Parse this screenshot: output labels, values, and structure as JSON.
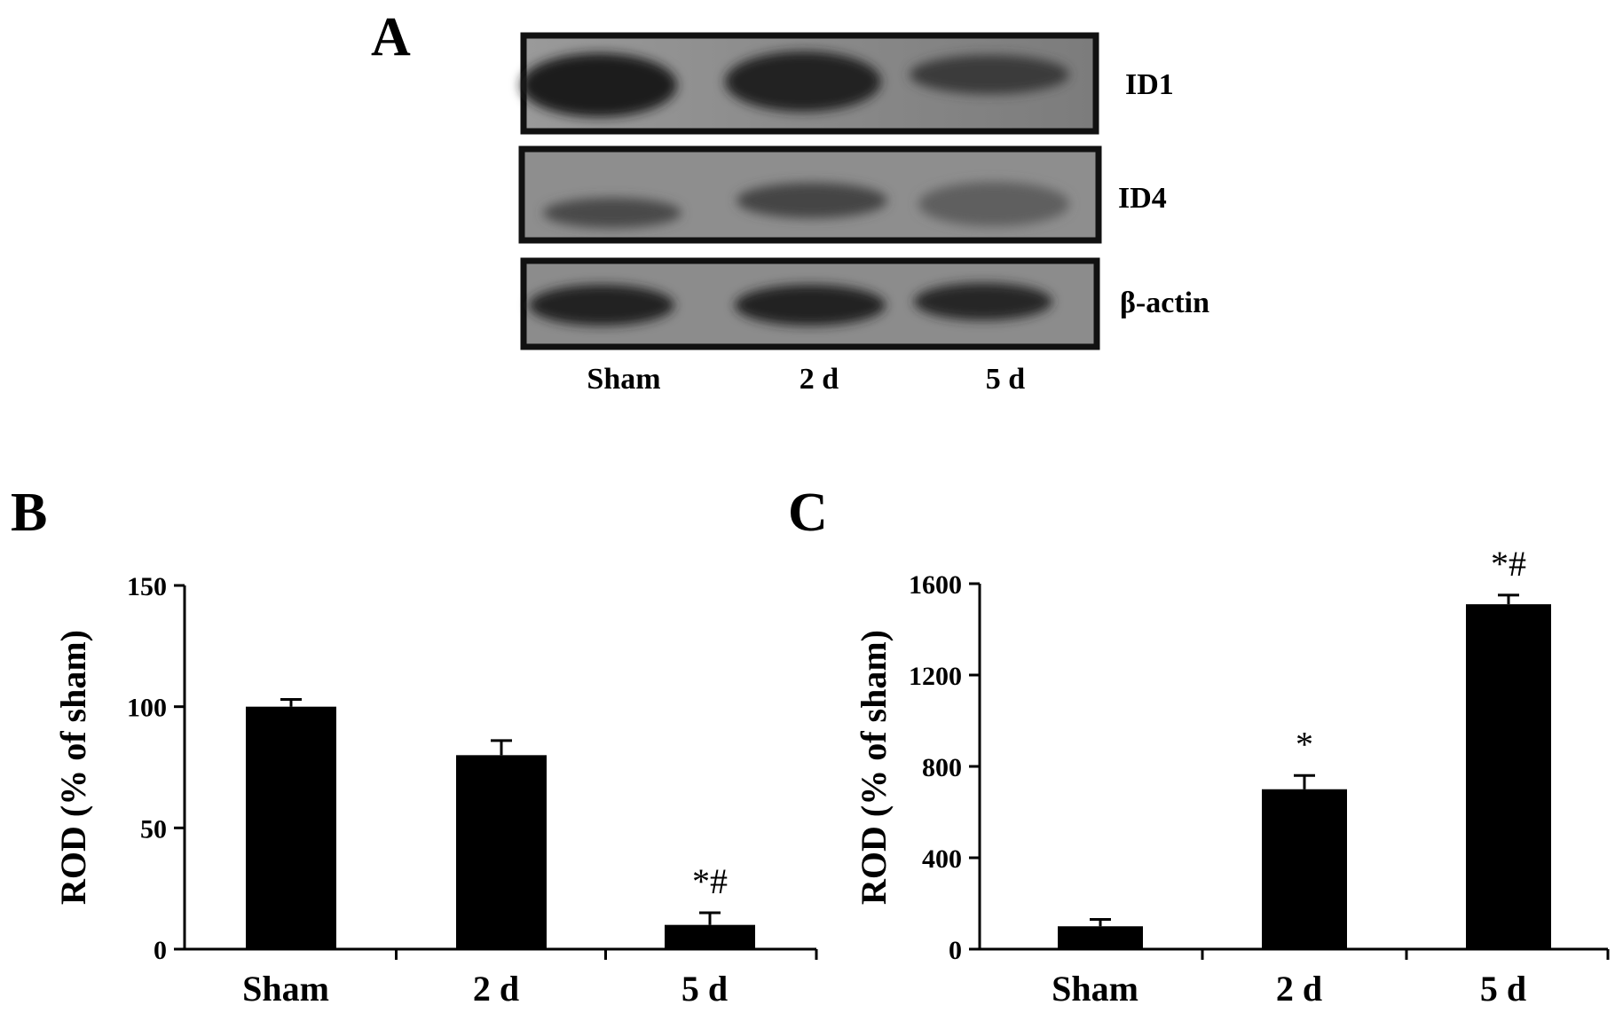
{
  "panels": {
    "a": "A",
    "b": "B",
    "c": "C"
  },
  "blot": {
    "rows": [
      {
        "label": "ID1"
      },
      {
        "label": "ID4"
      },
      {
        "label": "β-actin"
      }
    ],
    "lanes": [
      "Sham",
      "2 d",
      "5 d"
    ]
  },
  "colors": {
    "bar": "#000000",
    "axis": "#000000",
    "background": "#ffffff"
  },
  "chart_data": [
    {
      "panel": "B",
      "type": "bar",
      "categories": [
        "Sham",
        "2 d",
        "5 d"
      ],
      "values": [
        100,
        80,
        10
      ],
      "errors": [
        3,
        6,
        5
      ],
      "annotations": [
        "",
        "",
        "*#"
      ],
      "ylabel": "ROD (% of sham)",
      "xlabel": "",
      "title": "",
      "ylim": [
        0,
        150
      ],
      "yticks": [
        0,
        50,
        100,
        150
      ],
      "grid": false
    },
    {
      "panel": "C",
      "type": "bar",
      "categories": [
        "Sham",
        "2 d",
        "5 d"
      ],
      "values": [
        100,
        700,
        1510
      ],
      "errors": [
        30,
        60,
        40
      ],
      "annotations": [
        "",
        "*",
        "*#"
      ],
      "ylabel": "ROD (% of sham)",
      "xlabel": "",
      "title": "",
      "ylim": [
        0,
        1600
      ],
      "yticks": [
        0,
        400,
        800,
        1200,
        1600
      ],
      "grid": false
    }
  ]
}
